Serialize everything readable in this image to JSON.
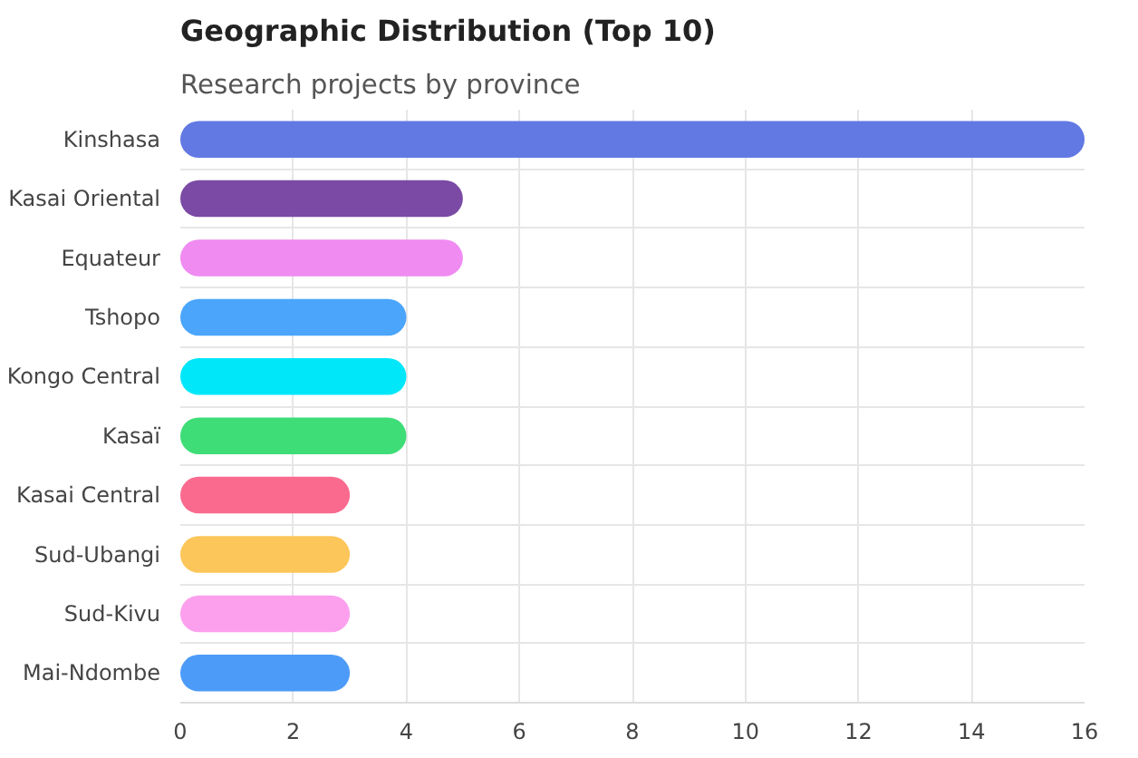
{
  "chart_data": {
    "type": "bar",
    "orientation": "horizontal",
    "title": "Geographic Distribution (Top 10)",
    "subtitle": "Research projects by province",
    "categories": [
      "Kinshasa",
      "Kasai Oriental",
      "Equateur",
      "Tshopo",
      "Kongo Central",
      "Kasaï",
      "Kasai Central",
      "Sud-Ubangi",
      "Sud-Kivu",
      "Mai-Ndombe"
    ],
    "values": [
      16,
      5,
      5,
      4,
      4,
      4,
      3,
      3,
      3,
      3
    ],
    "colors": [
      "#6279e3",
      "#7a4aa5",
      "#f08bf2",
      "#4aa5fb",
      "#00e7f9",
      "#3fdd77",
      "#fa6a8f",
      "#fdc65a",
      "#fca0ee",
      "#4d9bf8"
    ],
    "xlim": [
      0,
      16
    ],
    "xticks": [
      0,
      2,
      4,
      6,
      8,
      10,
      12,
      14,
      16
    ],
    "grid": true
  }
}
